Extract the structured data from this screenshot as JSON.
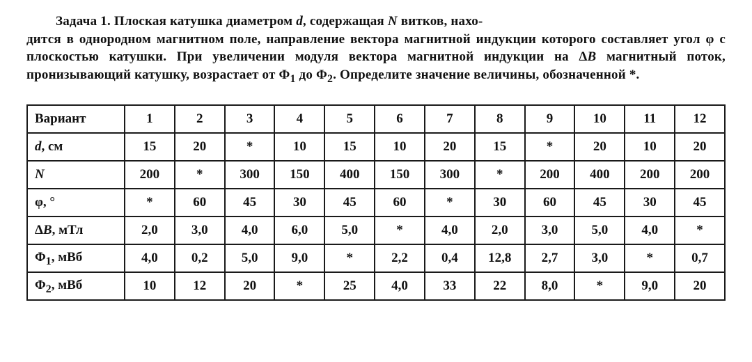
{
  "problem": {
    "label": "Задача 1.",
    "text_part1": "Плоская катушка диаметром ",
    "sym_d": "d",
    "text_part2": ", содержащая ",
    "sym_N": "N",
    "text_part3": " витков, находится в однородном магнитном поле, направление вектора магнитной индукции которого составляет угол φ с плоскостью катушки. При увеличении модуля вектора магнитной индукции на Δ",
    "sym_B": "B",
    "text_part4": " магнитный поток, пронизывающий катушку, возрастает от Φ",
    "sub1": "1",
    "text_part5": " до Φ",
    "sub2": "2",
    "text_part6": ". Определите значение величины, обозначенной *."
  },
  "table": {
    "header_label": "Вариант",
    "headers": [
      "1",
      "2",
      "3",
      "4",
      "5",
      "6",
      "7",
      "8",
      "9",
      "10",
      "11",
      "12"
    ],
    "rows": [
      {
        "label_html": "<span class='italic'>d</span>, см",
        "cells": [
          "15",
          "20",
          "*",
          "10",
          "15",
          "10",
          "20",
          "15",
          "*",
          "20",
          "10",
          "20"
        ]
      },
      {
        "label_html": "<span class='italic'>N</span>",
        "cells": [
          "200",
          "*",
          "300",
          "150",
          "400",
          "150",
          "300",
          "*",
          "200",
          "400",
          "200",
          "200"
        ]
      },
      {
        "label_html": "φ, °",
        "cells": [
          "*",
          "60",
          "45",
          "30",
          "45",
          "60",
          "*",
          "30",
          "60",
          "45",
          "30",
          "45"
        ]
      },
      {
        "label_html": "Δ<span class='italic'>B</span>, мТл",
        "cells": [
          "2,0",
          "3,0",
          "4,0",
          "6,0",
          "5,0",
          "*",
          "4,0",
          "2,0",
          "3,0",
          "5,0",
          "4,0",
          "*"
        ]
      },
      {
        "label_html": "Φ<sub>1</sub>, мВб",
        "cells": [
          "4,0",
          "0,2",
          "5,0",
          "9,0",
          "*",
          "2,2",
          "0,4",
          "12,8",
          "2,7",
          "3,0",
          "*",
          "0,7"
        ]
      },
      {
        "label_html": "Φ<sub>2</sub>, мВб",
        "cells": [
          "10",
          "12",
          "20",
          "*",
          "25",
          "4,0",
          "33",
          "22",
          "8,0",
          "*",
          "9,0",
          "20"
        ]
      }
    ]
  },
  "style": {
    "text_color": "#111111",
    "background": "#ffffff",
    "border_color": "#1a1a1a",
    "font_family": "Georgia, Times New Roman, serif",
    "body_font_size_pt": 14,
    "line_height": 1.35
  }
}
